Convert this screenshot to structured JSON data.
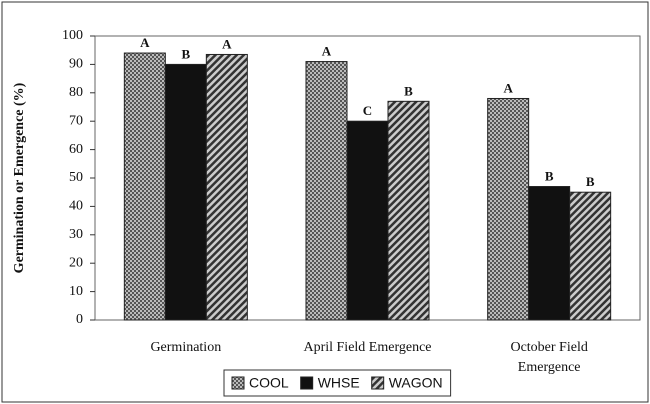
{
  "chart_data": {
    "type": "bar",
    "y_label": "Germination or Emergence (%)",
    "categories": [
      "Germination",
      "April Field Emergence",
      "October Field\nEmergence"
    ],
    "series": [
      {
        "name": "COOL",
        "color": "#8a8a8a",
        "pattern": "checker",
        "values": [
          94,
          91,
          78
        ],
        "letters": [
          "A",
          "A",
          "A"
        ]
      },
      {
        "name": "WHSE",
        "color": "#111111",
        "pattern": "solid",
        "values": [
          90,
          70,
          47
        ],
        "letters": [
          "B",
          "C",
          "B"
        ]
      },
      {
        "name": "WAGON",
        "color": "#555555",
        "pattern": "hatch",
        "values": [
          93.5,
          77,
          45
        ],
        "letters": [
          "A",
          "B",
          "B"
        ]
      }
    ],
    "ylim": [
      0,
      100
    ],
    "yticks": [
      0,
      10,
      20,
      30,
      40,
      50,
      60,
      70,
      80,
      90,
      100
    ],
    "legend": "bottom"
  }
}
